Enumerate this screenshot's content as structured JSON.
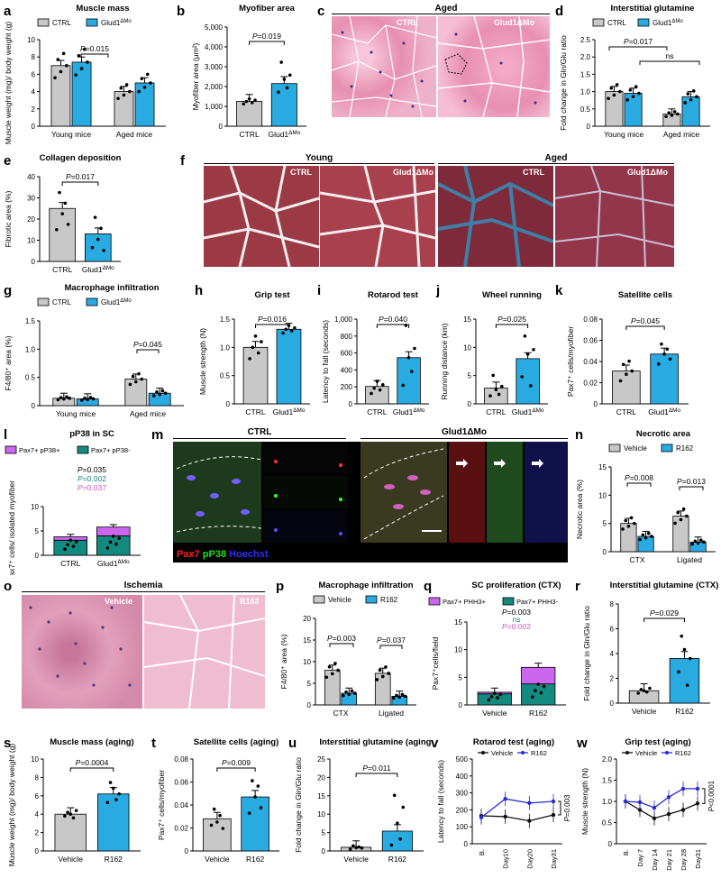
{
  "colors": {
    "ctrl": "#c8c8c8",
    "glud": "#29abe2",
    "vehicle": "#c8c8c8",
    "r162": "#29abe2",
    "purple": "#cc66ee",
    "teal": "#138a80",
    "blue": "#2a2ad4",
    "black": "#111111",
    "pval_purple": "#cc55cc"
  },
  "labels": {
    "a": "a",
    "b": "b",
    "c": "c",
    "d": "d",
    "e": "e",
    "f": "f",
    "g": "g",
    "h": "h",
    "i": "i",
    "j": "j",
    "k": "k",
    "l": "l",
    "m": "m",
    "n": "n",
    "o": "o",
    "p": "p",
    "q": "q",
    "r": "r",
    "s": "s",
    "t": "t",
    "u": "u",
    "v": "v",
    "w": "w"
  },
  "legend": {
    "ctrl": "CTRL",
    "glud": "Glud1ΔMo",
    "vehicle": "Vehicle",
    "r162": "R162",
    "pax_pos": "Pax7+ pP38+",
    "pax_neg": "Pax7+ pP38-",
    "phh3_pos": "Pax7+ PHH3+",
    "phh3_neg": "Pax7+ PHH3-"
  },
  "micro": {
    "c_title": "Aged",
    "c_left": "CTRL",
    "c_right": "Glud1ΔMo",
    "f_young": "Young",
    "f_aged": "Aged",
    "f_ctrl": "CTRL",
    "f_glud": "Glud1ΔMo",
    "f_ctrl2": "CTRL",
    "f_glud2": "Glud1ΔMo",
    "m_ctrl": "CTRL",
    "m_glud": "Glud1ΔMo",
    "m_pax": "Pax7",
    "m_pp38": "pP38",
    "m_hoechst": "Hoechst",
    "o_title": "Ischemia",
    "o_vehicle": "Vehicle",
    "o_r162": "R162"
  },
  "chart_data": [
    {
      "id": "a",
      "type": "bar",
      "title": "Muscle mass",
      "ylabel": "Muscle weight (mg)/ body weight (g)",
      "ylim": [
        0,
        10
      ],
      "yticks": [
        "0",
        "2",
        "4",
        "6",
        "8",
        "10"
      ],
      "categories": [
        "Young mice",
        "Aged mice"
      ],
      "series": [
        {
          "name": "CTRL",
          "values": [
            7.0,
            4.0
          ]
        },
        {
          "name": "Glud1ΔMo",
          "values": [
            7.4,
            5.0
          ]
        }
      ],
      "annotations": [
        "P=0.015"
      ]
    },
    {
      "id": "b",
      "type": "bar",
      "title": "Myofiber area",
      "ylabel": "Myofiber area (μm²)",
      "ylim": [
        0,
        5000
      ],
      "yticks": [
        "0",
        "1,000",
        "2,000",
        "3,000",
        "4,000",
        "5,000"
      ],
      "categories": [
        "CTRL",
        "Glud1ΔMo"
      ],
      "values": [
        1250,
        2150
      ],
      "annotations": [
        "P=0.019"
      ]
    },
    {
      "id": "d",
      "type": "bar",
      "title": "Interstitial glutamine",
      "ylabel": "Fold change in Gln/Glu ratio",
      "ylim": [
        0,
        2.5
      ],
      "yticks": [
        "0",
        "0.5",
        "1.0",
        "1.5",
        "2.0",
        "2.5"
      ],
      "categories": [
        "Young mice",
        "Aged mice"
      ],
      "series": [
        {
          "name": "CTRL",
          "values": [
            1.0,
            0.35
          ]
        },
        {
          "name": "Glud1ΔMo",
          "values": [
            0.95,
            0.85
          ]
        }
      ],
      "annotations": [
        "P=0.017",
        "ns"
      ]
    },
    {
      "id": "e",
      "type": "bar",
      "title": "Collagen deposition",
      "ylabel": "Fibrotic area (%)",
      "ylim": [
        0,
        40
      ],
      "yticks": [
        "0",
        "10",
        "20",
        "30",
        "40"
      ],
      "categories": [
        "CTRL",
        "Glud1ΔMo"
      ],
      "values": [
        25,
        13
      ],
      "annotations": [
        "P=0.017"
      ]
    },
    {
      "id": "g",
      "type": "bar",
      "title": "Macrophage infiltration",
      "ylabel": "F4/80⁺ area (%)",
      "ylim": [
        0,
        1.5
      ],
      "yticks": [
        "0",
        "0.5",
        "1.0",
        "1.5"
      ],
      "categories": [
        "Young mice",
        "Aged mice"
      ],
      "series": [
        {
          "name": "CTRL",
          "values": [
            0.13,
            0.47
          ]
        },
        {
          "name": "Glud1ΔMo",
          "values": [
            0.12,
            0.22
          ]
        }
      ],
      "annotations": [
        "P=0.045"
      ]
    },
    {
      "id": "h",
      "type": "bar",
      "title": "Grip test",
      "ylabel": "Muscle strength (N)",
      "ylim": [
        0,
        1.5
      ],
      "yticks": [
        "0",
        "0.5",
        "1.0",
        "1.5"
      ],
      "categories": [
        "CTRL",
        "Glud1ΔMo"
      ],
      "values": [
        1.0,
        1.32
      ],
      "annotations": [
        "P=0.016"
      ]
    },
    {
      "id": "i",
      "type": "bar",
      "title": "Rotarod test",
      "ylabel": "Latency to fall (seconds)",
      "ylim": [
        0,
        1000
      ],
      "yticks": [
        "0",
        "200",
        "400",
        "600",
        "800",
        "1,000"
      ],
      "categories": [
        "CTRL",
        "Glud1ΔMo"
      ],
      "values": [
        205,
        545
      ],
      "annotations": [
        "P=0.040"
      ]
    },
    {
      "id": "j",
      "type": "bar",
      "title": "Wheel running",
      "ylabel": "Running distance (km)",
      "ylim": [
        0,
        15
      ],
      "yticks": [
        "0",
        "5",
        "10",
        "15"
      ],
      "categories": [
        "CTRL",
        "Glud1ΔMo"
      ],
      "values": [
        2.8,
        8.0
      ],
      "annotations": [
        "P=0.025"
      ]
    },
    {
      "id": "k",
      "type": "bar",
      "title": "Satellite cells",
      "ylabel": "Pax7⁺ cells/myofiber",
      "ylim": [
        0,
        0.08
      ],
      "yticks": [
        "0",
        "0.02",
        "0.04",
        "0.06",
        "0.08"
      ],
      "categories": [
        "CTRL",
        "Glud1ΔMo"
      ],
      "values": [
        0.031,
        0.047
      ],
      "annotations": [
        "P=0.045"
      ]
    },
    {
      "id": "l",
      "type": "stacked-bar",
      "title": "pP38 in SC",
      "ylabel": "Pax7⁺ cells/ isolated myofiber",
      "ylim": [
        0,
        10
      ],
      "yticks": [
        "0",
        "5",
        "10"
      ],
      "categories": [
        "CTRL",
        "Glud1ΔMo"
      ],
      "series": [
        {
          "name": "Pax7+ pP38-",
          "values": [
            3.1,
            4.0
          ]
        },
        {
          "name": "Pax7+ pP38+",
          "values": [
            0.7,
            1.8
          ]
        }
      ],
      "annotations": [
        "P=0.035",
        "P=0.002",
        "P=0.037"
      ]
    },
    {
      "id": "n",
      "type": "bar",
      "title": "Necrotic area",
      "ylabel": "Necrotic area (%)",
      "ylim": [
        0,
        15
      ],
      "yticks": [
        "0",
        "5",
        "10",
        "15"
      ],
      "categories": [
        "CTX",
        "Ligated"
      ],
      "series": [
        {
          "name": "Vehicle",
          "values": [
            5.0,
            6.3
          ]
        },
        {
          "name": "R162",
          "values": [
            2.7,
            1.7
          ]
        }
      ],
      "annotations": [
        "P=0.008",
        "P=0.013"
      ]
    },
    {
      "id": "p",
      "type": "bar",
      "title": "Macrophage infiltration",
      "ylabel": "F4/80⁺ area (%)",
      "ylim": [
        0,
        20
      ],
      "yticks": [
        "0",
        "5",
        "10",
        "15",
        "20"
      ],
      "categories": [
        "CTX",
        "Ligated"
      ],
      "series": [
        {
          "name": "Vehicle",
          "values": [
            8.0,
            7.3
          ]
        },
        {
          "name": "R162",
          "values": [
            2.7,
            2.0
          ]
        }
      ],
      "annotations": [
        "P=0.003",
        "P=0.037"
      ]
    },
    {
      "id": "q",
      "type": "stacked-bar",
      "title": "SC proliferation (CTX)",
      "ylabel": "Pax7⁺cells/field",
      "ylim": [
        0,
        15
      ],
      "yticks": [
        "0",
        "5",
        "10",
        "15"
      ],
      "categories": [
        "Vehicle",
        "R162"
      ],
      "series": [
        {
          "name": "Pax7+ PHH3-",
          "values": [
            2.0,
            3.8
          ]
        },
        {
          "name": "Pax7+ PHH3+",
          "values": [
            0.3,
            3.0
          ]
        }
      ],
      "annotations": [
        "P=0.003",
        "ns",
        "P=0.002"
      ]
    },
    {
      "id": "r",
      "type": "bar",
      "title": "Interstitial glutamine (CTX)",
      "ylabel": "Fold change in Gln/Glu ratio",
      "ylim": [
        0,
        8
      ],
      "yticks": [
        "0",
        "2",
        "4",
        "6",
        "8"
      ],
      "categories": [
        "Vehicle",
        "R162"
      ],
      "values": [
        1.0,
        3.6
      ],
      "annotations": [
        "P=0.029"
      ]
    },
    {
      "id": "s",
      "type": "bar",
      "title": "Muscle  mass (aging)",
      "ylabel": "Muscle weight (mg)/ body weight (g)",
      "ylim": [
        0,
        10
      ],
      "yticks": [
        "0",
        "2",
        "4",
        "6",
        "8",
        "10"
      ],
      "categories": [
        "Vehicle",
        "R162"
      ],
      "values": [
        4.0,
        6.2
      ],
      "annotations": [
        "P=0.0004"
      ]
    },
    {
      "id": "t",
      "type": "bar",
      "title": "Satellite cells (aging)",
      "ylabel": "Pax7⁺ cells/myofiber",
      "ylim": [
        0,
        0.08
      ],
      "yticks": [
        "0",
        "0.02",
        "0.04",
        "0.06",
        "0.08"
      ],
      "categories": [
        "Vehicle",
        "R162"
      ],
      "values": [
        0.028,
        0.047
      ],
      "annotations": [
        "P=0.009"
      ]
    },
    {
      "id": "u",
      "type": "bar",
      "title": "Interstitial glutamine (aging)",
      "ylabel": "Fold change in Gln/Glu ratio",
      "ylim": [
        0,
        25
      ],
      "yticks": [
        "0",
        "5",
        "10",
        "15",
        "20",
        "25"
      ],
      "categories": [
        "Vehicle",
        "R162"
      ],
      "values": [
        1.0,
        5.4
      ],
      "annotations": [
        "P=0.011"
      ]
    },
    {
      "id": "v",
      "type": "line",
      "title": "Rotarod test (aging)",
      "ylabel": "Latency to fall (seconds)",
      "ylim": [
        0,
        500
      ],
      "yticks": [
        "0",
        "100",
        "200",
        "300",
        "400",
        "500"
      ],
      "categories": [
        "B.",
        "Day10",
        "Day20",
        "Day31"
      ],
      "series": [
        {
          "name": "Vehicle",
          "values": [
            165,
            160,
            135,
            170
          ]
        },
        {
          "name": "R162",
          "values": [
            155,
            265,
            240,
            250
          ]
        }
      ],
      "annotations": [
        "P=0.003"
      ]
    },
    {
      "id": "w",
      "type": "line",
      "title": "Grip test (aging)",
      "ylabel": "Muscle strength (N)",
      "ylim": [
        0,
        2.0
      ],
      "yticks": [
        "0",
        "0.5",
        "1.0",
        "1.5",
        "2.0"
      ],
      "categories": [
        "B.",
        "Day 7",
        "Day 14",
        "Day 21",
        "Day 28",
        "Day31"
      ],
      "series": [
        {
          "name": "Vehicle",
          "values": [
            1.0,
            0.8,
            0.6,
            0.7,
            0.8,
            0.95
          ]
        },
        {
          "name": "R162",
          "values": [
            1.0,
            0.98,
            0.85,
            1.1,
            1.3,
            1.3
          ]
        }
      ],
      "annotations": [
        "P<0.0001"
      ]
    }
  ]
}
